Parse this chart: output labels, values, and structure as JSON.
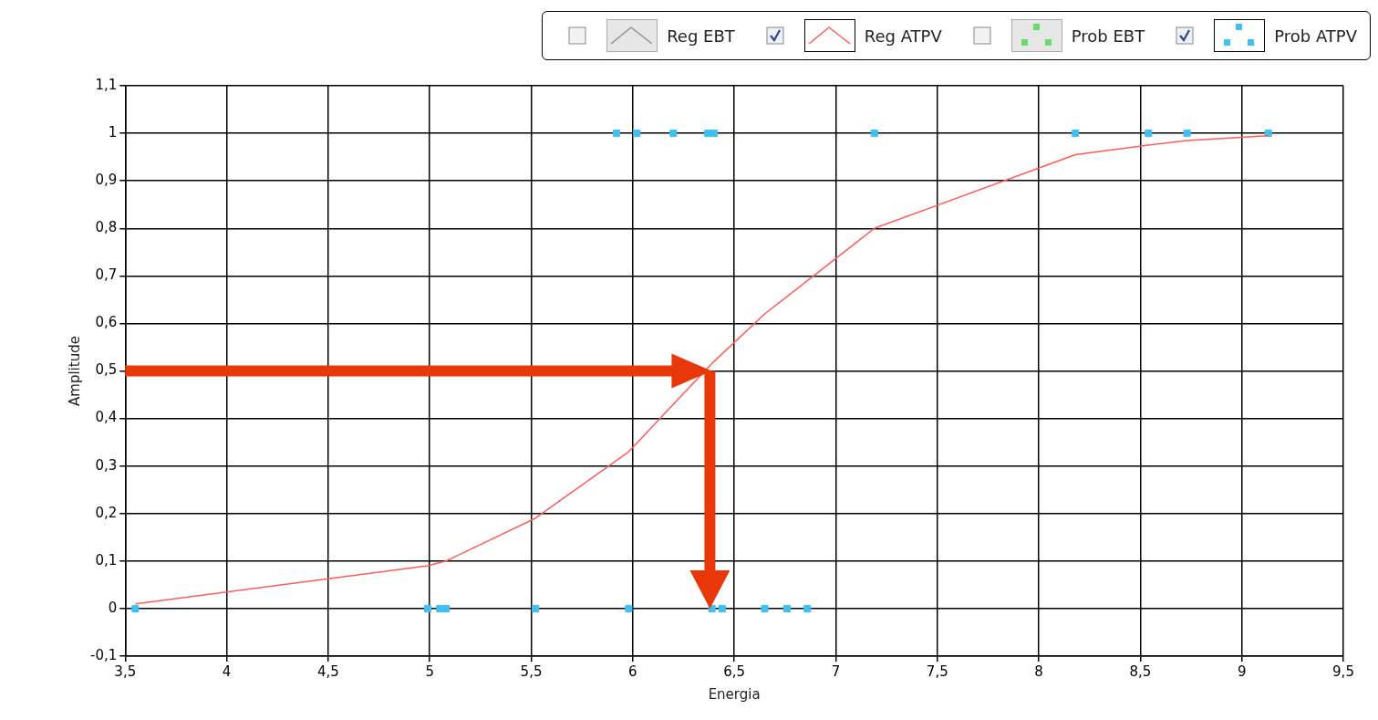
{
  "chart_data": {
    "type": "scatter",
    "xlabel": "Energia",
    "ylabel": "Amplitude",
    "xlim": [
      3.5,
      9.5
    ],
    "xticks": [
      {
        "value": 3.5,
        "label": "3,5"
      },
      4,
      {
        "value": 4.5,
        "label": "4,5"
      },
      5,
      {
        "value": 5.5,
        "label": "5,5"
      },
      6,
      {
        "value": 6.5,
        "label": "6,5"
      },
      7,
      {
        "value": 7.5,
        "label": "7,5"
      },
      8,
      {
        "value": 8.5,
        "label": "8,5"
      },
      9,
      {
        "value": 9.5,
        "label": "9,5"
      }
    ],
    "ylim": [
      -0.1,
      1.1
    ],
    "yticks": [
      {
        "value": -0.1,
        "label": "-0,1"
      },
      0,
      {
        "value": 0.1,
        "label": "0,1"
      },
      {
        "value": 0.2,
        "label": "0,2"
      },
      {
        "value": 0.3,
        "label": "0,3"
      },
      {
        "value": 0.4,
        "label": "0,4"
      },
      {
        "value": 0.5,
        "label": "0,5"
      },
      {
        "value": 0.6,
        "label": "0,6"
      },
      {
        "value": 0.7,
        "label": "0,7"
      },
      {
        "value": 0.8,
        "label": "0,8"
      },
      {
        "value": 0.9,
        "label": "0,9"
      },
      1,
      {
        "value": 1.1,
        "label": "1,1"
      }
    ],
    "grid": true,
    "legend": "top right",
    "series": [
      {
        "name": "Reg EBT",
        "type": "line",
        "marker": "none",
        "color": "#909090"
      },
      {
        "name": "Reg ATPV",
        "type": "line",
        "marker": "none",
        "color": "#ff5a5a",
        "x": [
          3.55,
          4.99,
          5.08,
          5.52,
          5.98,
          6.2,
          6.4,
          6.65,
          6.86,
          7.19,
          8.18,
          8.54,
          8.73,
          9.13
        ],
        "values": [
          0.01,
          0.09,
          0.1,
          0.19,
          0.33,
          0.43,
          0.52,
          0.62,
          0.69,
          0.8,
          0.955,
          0.975,
          0.985,
          0.995
        ]
      },
      {
        "name": "Prob EBT",
        "type": "scatter",
        "marker": "square",
        "color": "#66dd66"
      },
      {
        "name": "Prob ATPV",
        "type": "scatter",
        "marker": "square",
        "color": "#3ec0f5",
        "x": [
          5.92,
          6.02,
          6.2,
          6.37,
          6.4,
          7.19,
          8.18,
          8.54,
          8.73,
          9.13,
          3.55,
          4.99,
          5.05,
          5.08,
          5.52,
          5.98,
          6.39,
          6.44,
          6.65,
          6.76,
          6.86
        ],
        "values": [
          1,
          1,
          1,
          1,
          1,
          1,
          1,
          1,
          1,
          1,
          0,
          0,
          0,
          0,
          0,
          0,
          0,
          0,
          0,
          0,
          0
        ]
      }
    ]
  }
}
